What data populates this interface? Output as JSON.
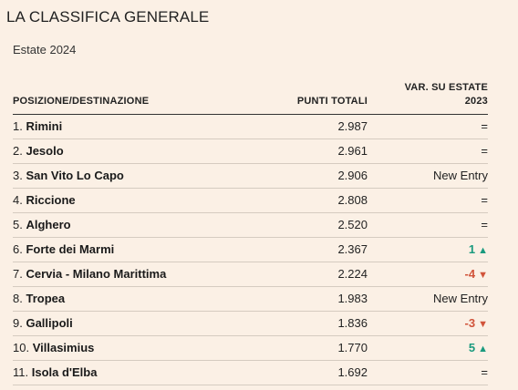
{
  "title": "LA CLASSIFICA GENERALE",
  "subtitle": "Estate 2024",
  "columns": {
    "position": "POSIZIONE/DESTINAZIONE",
    "points": "PUNTI TOTALI",
    "variation_line1": "VAR. SU ESTATE",
    "variation_line2": "2023"
  },
  "colors": {
    "up": "#1a9a7e",
    "down": "#d1533a",
    "background": "#fbf0e5"
  },
  "rows": [
    {
      "rank": "1.",
      "name": "Rimini",
      "points": "2.987",
      "variation": "=",
      "trend": "same"
    },
    {
      "rank": "2.",
      "name": "Jesolo",
      "points": "2.961",
      "variation": "=",
      "trend": "same"
    },
    {
      "rank": "3.",
      "name": "San Vito Lo Capo",
      "points": "2.906",
      "variation": "New Entry",
      "trend": "new"
    },
    {
      "rank": "4.",
      "name": "Riccione",
      "points": "2.808",
      "variation": "=",
      "trend": "same"
    },
    {
      "rank": "5.",
      "name": "Alghero",
      "points": "2.520",
      "variation": "=",
      "trend": "same"
    },
    {
      "rank": "6.",
      "name": "Forte dei Marmi",
      "points": "2.367",
      "variation": "1",
      "trend": "up"
    },
    {
      "rank": "7.",
      "name": "Cervia - Milano Marittima",
      "points": "2.224",
      "variation": "-4",
      "trend": "down"
    },
    {
      "rank": "8.",
      "name": "Tropea",
      "points": "1.983",
      "variation": "New Entry",
      "trend": "new"
    },
    {
      "rank": "9.",
      "name": "Gallipoli",
      "points": "1.836",
      "variation": "-3",
      "trend": "down"
    },
    {
      "rank": "10.",
      "name": "Villasimius",
      "points": "1.770",
      "variation": "5",
      "trend": "up"
    },
    {
      "rank": "11.",
      "name": "Isola d'Elba",
      "points": "1.692",
      "variation": "=",
      "trend": "same"
    }
  ]
}
